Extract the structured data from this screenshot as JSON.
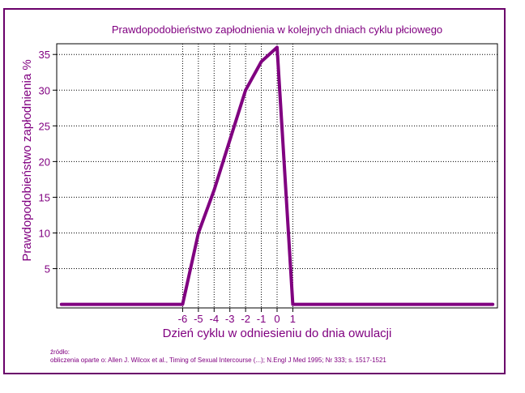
{
  "chart_data": {
    "type": "line",
    "title": "Prawdopodobieństwo zapłodnienia w kolejnych dniach cyklu płciowego",
    "xlabel": "Dzień cyklu w odniesieniu do dnia owulacji",
    "ylabel": "Prawdopodobieństwo zapłodnienia %",
    "xlim": [
      -14,
      14
    ],
    "ylim": [
      -0.5,
      36.5
    ],
    "x_ticks": [
      -6,
      -5,
      -4,
      -3,
      -2,
      -1,
      0,
      1
    ],
    "x_tick_labels": [
      "-6",
      "-5",
      "-4",
      "-3",
      "-2",
      "-1",
      "0",
      "1"
    ],
    "y_ticks": [
      5,
      10,
      15,
      20,
      25,
      30,
      35
    ],
    "y_tick_labels": [
      "5",
      "10",
      "15",
      "20",
      "25",
      "30",
      "35"
    ],
    "grid": true,
    "series": [
      {
        "color": "#800080",
        "x": [
          -13.7,
          -6,
          -5,
          -4,
          -3,
          -2,
          -1,
          0,
          1,
          13.7
        ],
        "y": [
          0,
          0,
          10,
          16,
          23,
          30,
          34,
          36,
          0,
          0
        ]
      }
    ],
    "notes": {
      "source_label": "źródło:",
      "citation": "obliczenia oparte o: Allen J. Wilcox et al., Timing of Sexual Intercourse (...); N.Engl J Med 1995; Nr 333; s. 1517-1521"
    }
  },
  "colors": {
    "accent": "#800080",
    "frame": "#6a006a",
    "grid": "#000000"
  }
}
